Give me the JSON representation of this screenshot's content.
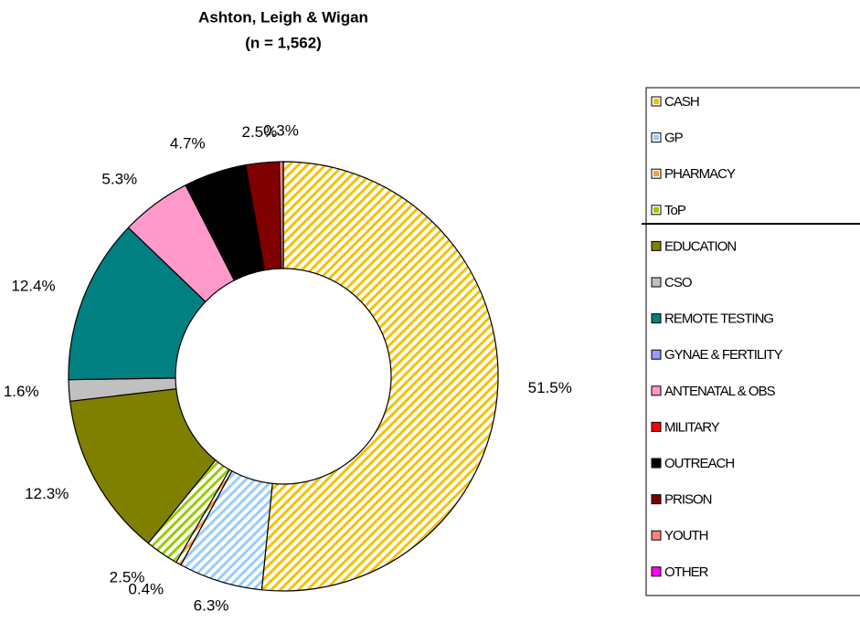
{
  "chart_data": {
    "type": "donut",
    "title": "Ashton, Leigh & Wigan",
    "subtitle": "(n = 1,562)",
    "categories": [
      "CASH",
      "GP",
      "PHARMACY",
      "ToP",
      "EDUCATION",
      "CSO",
      "REMOTE TESTING",
      "GYNAE & FERTILITY",
      "ANTENATAL & OBS",
      "MILITARY",
      "OUTREACH",
      "PRISON",
      "YOUTH",
      "OTHER"
    ],
    "values": [
      51.5,
      6.3,
      0.4,
      2.5,
      12.3,
      1.6,
      12.4,
      0,
      5.3,
      0,
      4.7,
      2.5,
      0.3,
      0
    ],
    "value_labels": [
      "51.5%",
      "6.3%",
      "0.4%",
      "2.5%",
      "12.3%",
      "1.6%",
      "12.4%",
      null,
      "5.3%",
      null,
      "4.7%",
      "2.5%",
      "0.3%",
      null
    ],
    "colors": [
      "#f2c200",
      "#99ccff",
      "#ff9933",
      "#99cc00",
      "#808000",
      "#c0c0c0",
      "#008080",
      "#9999ff",
      "#ff99cc",
      "#ff0000",
      "#000000",
      "#800000",
      "#ff8080",
      "#ff00ff"
    ],
    "hatched": [
      true,
      true,
      true,
      true,
      false,
      false,
      false,
      false,
      false,
      false,
      false,
      false,
      false,
      false
    ]
  }
}
